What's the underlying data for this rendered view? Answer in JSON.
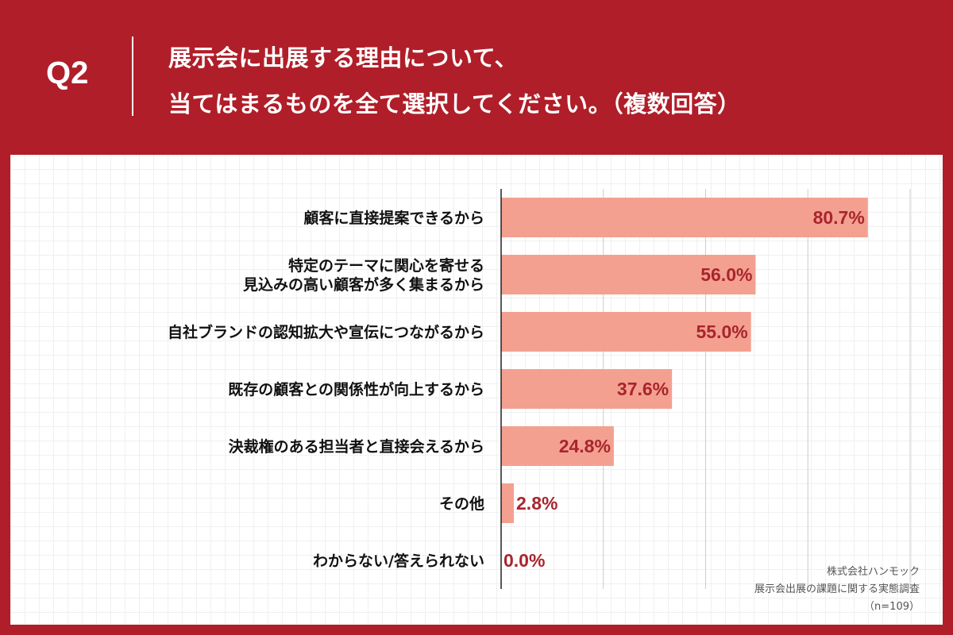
{
  "header": {
    "qnum": "Q2",
    "question_line1": "展示会に出展する理由について、",
    "question_line2": "当てはまるものを全て選択してください。（複数回答）"
  },
  "colors": {
    "background": "#b01e29",
    "bar": "#f4a091",
    "value_text": "#a8252c",
    "gridline": "#cccccc"
  },
  "chart_data": {
    "type": "bar",
    "orientation": "horizontal",
    "title": "展示会に出展する理由について、当てはまるものを全て選択してください。（複数回答）",
    "categories": [
      [
        "顧客に直接提案できるから"
      ],
      [
        "特定のテーマに関心を寄せる",
        "見込みの高い顧客が多く集まるから"
      ],
      [
        "自社ブランドの認知拡大や宣伝につながるから"
      ],
      [
        "既存の顧客との関係性が向上するから"
      ],
      [
        "決裁権のある担当者と直接会えるから"
      ],
      [
        "その他"
      ],
      [
        "わからない/答えられない"
      ]
    ],
    "values": [
      80.7,
      56.0,
      55.0,
      37.6,
      24.8,
      2.8,
      0.0
    ],
    "value_labels": [
      "80.7%",
      "56.0%",
      "55.0%",
      "37.6%",
      "24.8%",
      "2.8%",
      "0.0%"
    ],
    "xlim": [
      0,
      90
    ],
    "gridline_step": 22.5,
    "xlabel": "",
    "ylabel": ""
  },
  "source": {
    "company": "株式会社ハンモック",
    "survey": "展示会出展の課題に関する実態調査",
    "sample": "（n=109）"
  }
}
